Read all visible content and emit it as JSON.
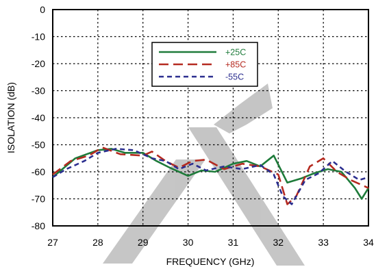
{
  "chart_data": {
    "type": "line",
    "title": "",
    "xlabel": "FREQUENCY (GHz)",
    "ylabel": "ISOLATION (dB)",
    "xlim": [
      27,
      34
    ],
    "ylim": [
      -80,
      0
    ],
    "xticks": [
      "27",
      "28",
      "29",
      "30",
      "31",
      "32",
      "33",
      "34"
    ],
    "yticks": [
      "0",
      "-10",
      "-20",
      "-30",
      "-40",
      "-50",
      "-60",
      "-70",
      "-80"
    ],
    "grid": true,
    "legend_position": "top-right",
    "watermark": "watermark",
    "series": [
      {
        "name": "+25C",
        "color": "#1e7b3a",
        "dash": "solid",
        "x": [
          27.0,
          27.5,
          28.0,
          28.3,
          28.6,
          29.0,
          29.3,
          29.6,
          30.0,
          30.3,
          30.6,
          31.0,
          31.3,
          31.6,
          31.9,
          32.2,
          32.5,
          32.8,
          33.1,
          33.4,
          33.7,
          33.85,
          34.0
        ],
        "y": [
          -62,
          -55,
          -52,
          -51.5,
          -53,
          -53,
          -56,
          -58.5,
          -61.5,
          -59.5,
          -60,
          -57,
          -56,
          -58,
          -54,
          -64,
          -62.5,
          -60.5,
          -59,
          -60,
          -66,
          -70,
          -66
        ]
      },
      {
        "name": "+85C",
        "color": "#b52a20",
        "dash": "long",
        "x": [
          27.0,
          27.4,
          27.8,
          28.1,
          28.5,
          29.0,
          29.2,
          29.5,
          29.8,
          30.1,
          30.4,
          30.8,
          31.2,
          31.6,
          32.0,
          32.2,
          32.4,
          32.7,
          33.0,
          33.3,
          33.6,
          34.0
        ],
        "y": [
          -61,
          -56,
          -54,
          -51,
          -53.5,
          -54,
          -52.5,
          -56,
          -58.5,
          -56,
          -55.5,
          -59,
          -57,
          -58,
          -61,
          -72,
          -69,
          -58,
          -55,
          -60,
          -63,
          -66
        ]
      },
      {
        "name": "-55C",
        "color": "#2b2e8f",
        "dash": "short",
        "x": [
          27.0,
          27.3,
          27.7,
          28.0,
          28.4,
          28.8,
          29.2,
          29.5,
          29.8,
          30.1,
          30.4,
          30.8,
          31.2,
          31.6,
          31.9,
          32.1,
          32.3,
          32.6,
          32.9,
          33.2,
          33.5,
          33.8,
          34.0
        ],
        "y": [
          -62,
          -59,
          -56,
          -53,
          -51.5,
          -52,
          -55,
          -56,
          -59,
          -57,
          -59.5,
          -58,
          -59,
          -57.5,
          -61,
          -69,
          -72,
          -63,
          -60.5,
          -56,
          -60,
          -63,
          -62
        ]
      }
    ]
  }
}
